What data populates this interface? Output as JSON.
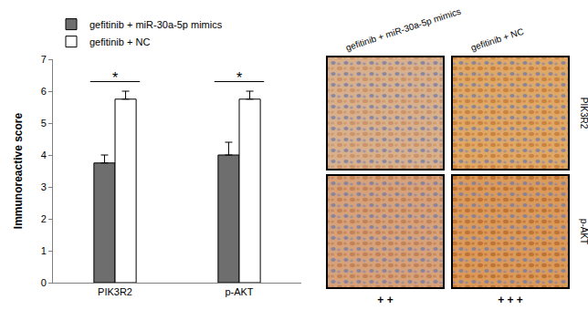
{
  "chart_data": {
    "type": "bar",
    "categories": [
      "PIK3R2",
      "p-AKT"
    ],
    "series": [
      {
        "name": "gefitinib + miR-30a-5p mimics",
        "color": "#6e6e6e",
        "values": [
          3.75,
          4.0
        ],
        "errors": [
          0.25,
          0.4
        ]
      },
      {
        "name": "gefitinib + NC",
        "color": "#ffffff",
        "values": [
          5.75,
          5.75
        ],
        "errors": [
          0.25,
          0.25
        ]
      }
    ],
    "y_label": "Immunoreactive score",
    "ylim": [
      0,
      7
    ],
    "yticks": [
      0,
      1,
      2,
      3,
      4,
      5,
      6,
      7
    ],
    "grid": false,
    "legend": "top left",
    "significance": [
      {
        "category": "PIK3R2",
        "label": "*"
      },
      {
        "category": "p-AKT",
        "label": "*"
      }
    ]
  },
  "panel": {
    "columns": [
      "gefitinib + miR-30a-5p mimics",
      "gefitinib + NC"
    ],
    "rows": [
      "PIK3R2",
      "p-AKT"
    ],
    "scores": [
      "+ +",
      "+ + +"
    ]
  }
}
